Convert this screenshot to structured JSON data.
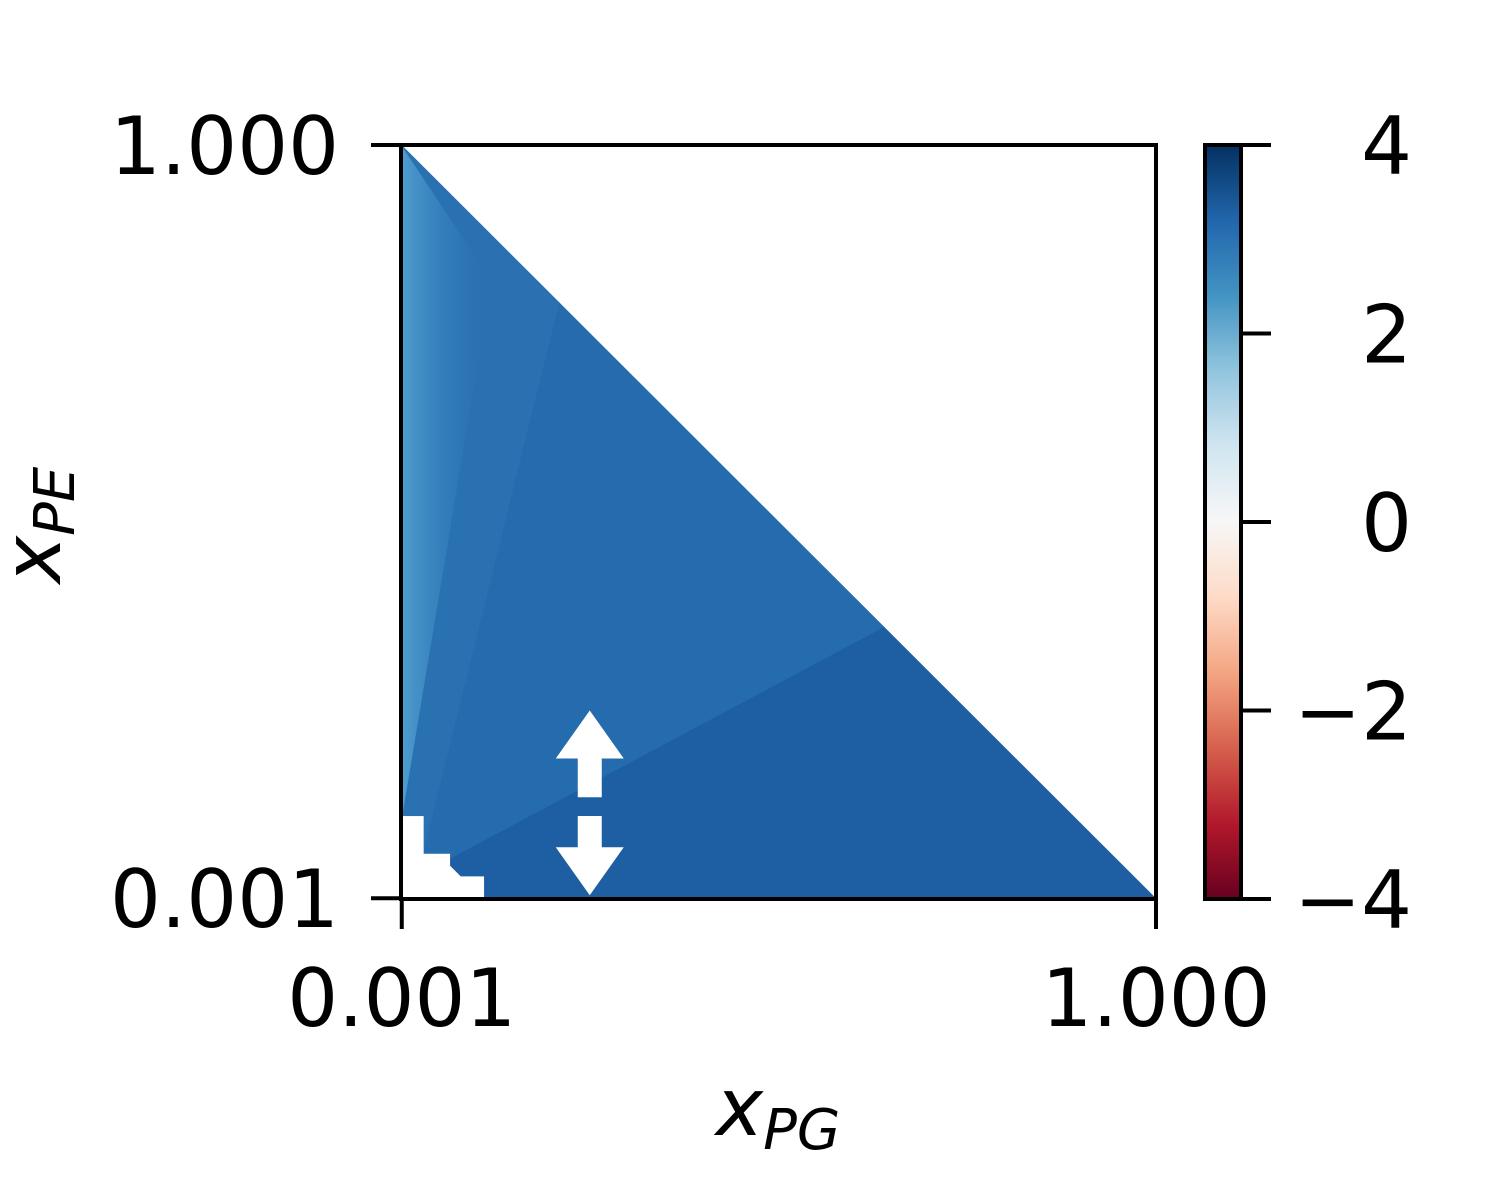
{
  "chart_data": {
    "type": "heatmap",
    "title": "",
    "xlabel": {
      "main": "x",
      "sub": "PG"
    },
    "ylabel": {
      "main": "x",
      "sub": "PE"
    },
    "xlim": [
      0,
      1
    ],
    "ylim": [
      0,
      1
    ],
    "x_ticks": [
      {
        "value": 0.001,
        "label": "0.001"
      },
      {
        "value": 1.0,
        "label": "1.000"
      }
    ],
    "y_ticks": [
      {
        "value": 0.001,
        "label": "0.001"
      },
      {
        "value": 1.0,
        "label": "1.000"
      }
    ],
    "domain": "simplex: x_PG + x_PE <= 1 (white region outside)",
    "fill_regions": [
      {
        "name": "upper-wedge",
        "vertices": [
          [
            0.0,
            1.0
          ],
          [
            0.21,
            0.79
          ],
          [
            0.02,
            0.02
          ],
          [
            0.0,
            0.02
          ]
        ],
        "value": 3.0
      },
      {
        "name": "middle-region",
        "vertices": [
          [
            0.21,
            0.79
          ],
          [
            0.64,
            0.36
          ],
          [
            0.06,
            0.05
          ],
          [
            0.02,
            0.02
          ]
        ],
        "value": 3.1
      },
      {
        "name": "lower-region",
        "vertices": [
          [
            0.64,
            0.36
          ],
          [
            1.0,
            0.0
          ],
          [
            0.11,
            0.0
          ],
          [
            0.06,
            0.05
          ]
        ],
        "value": 3.3
      },
      {
        "name": "left-edge-gradient",
        "vertices": [
          [
            0.0,
            1.0
          ],
          [
            0.12,
            0.82
          ],
          [
            0.0,
            0.1
          ]
        ],
        "value": 1.8
      }
    ],
    "missing_cells": [
      {
        "x": [
          0.0,
          0.03
        ],
        "y": [
          0.0,
          0.11
        ]
      },
      {
        "x": [
          0.0,
          0.065
        ],
        "y": [
          0.0,
          0.06
        ]
      },
      {
        "x": [
          0.0,
          0.11
        ],
        "y": [
          0.0,
          0.03
        ]
      }
    ],
    "arrows": [
      {
        "x": 0.25,
        "direction": "up",
        "from_y": 0.135,
        "to_y": 0.25
      },
      {
        "x": 0.25,
        "direction": "down",
        "from_y": 0.11,
        "to_y": 0.005
      }
    ],
    "colorbar": {
      "colormap": "RdBu",
      "min": -4,
      "max": 4,
      "ticks": [
        {
          "value": 4,
          "label": "4"
        },
        {
          "value": 2,
          "label": "2"
        },
        {
          "value": 0,
          "label": "0"
        },
        {
          "value": -2,
          "label": "−2"
        },
        {
          "value": -4,
          "label": "−4"
        }
      ]
    }
  }
}
